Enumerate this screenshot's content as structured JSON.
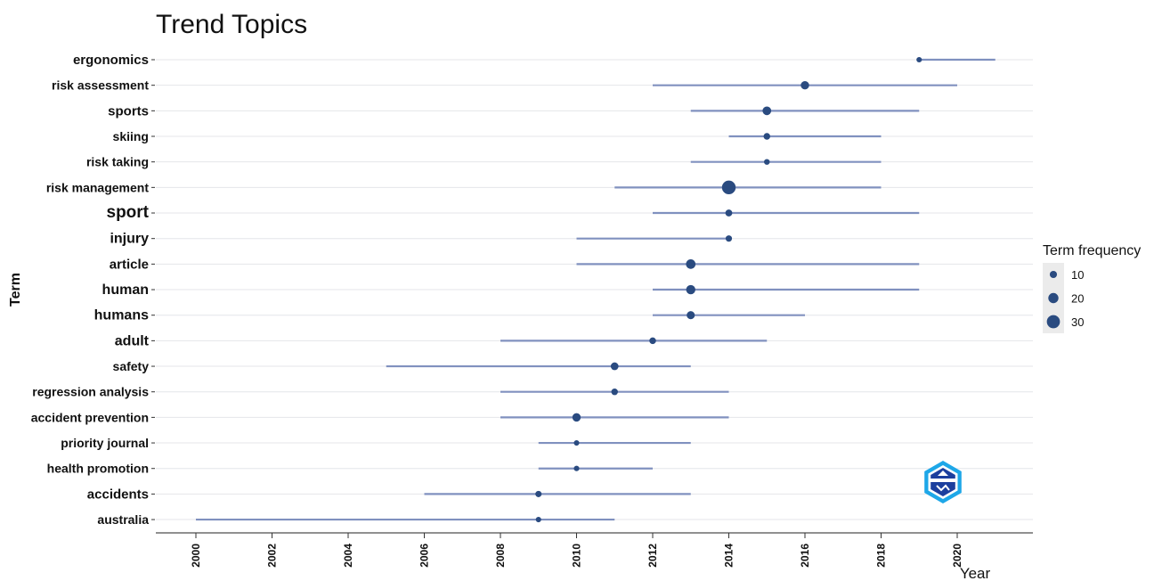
{
  "chart_data": {
    "type": "scatter",
    "title": "Trend Topics",
    "xlabel": "Year",
    "ylabel": "Term",
    "xlim": [
      1999,
      2022
    ],
    "x_ticks": [
      2000,
      2002,
      2004,
      2006,
      2008,
      2010,
      2012,
      2014,
      2016,
      2018,
      2020
    ],
    "grid": true,
    "legend": {
      "title": "Term frequency",
      "position": "right",
      "entries": [
        {
          "label": "10",
          "size": 10
        },
        {
          "label": "20",
          "size": 20
        },
        {
          "label": "30",
          "size": 30
        }
      ]
    },
    "colors": {
      "point": "#2a4b80",
      "line": "#8091bf",
      "grid": "#e4e6ea"
    },
    "terms": [
      {
        "term": "ergonomics",
        "year_q1": 2019,
        "year_median": 2019,
        "year_q3": 2021,
        "freq": 4
      },
      {
        "term": "risk assessment",
        "year_q1": 2012,
        "year_median": 2016,
        "year_q3": 2020,
        "freq": 14
      },
      {
        "term": "sports",
        "year_q1": 2013,
        "year_median": 2015,
        "year_q3": 2019,
        "freq": 15
      },
      {
        "term": "skiing",
        "year_q1": 2014,
        "year_median": 2015,
        "year_q3": 2018,
        "freq": 8
      },
      {
        "term": "risk taking",
        "year_q1": 2013,
        "year_median": 2015,
        "year_q3": 2018,
        "freq": 5
      },
      {
        "term": "risk management",
        "year_q1": 2011,
        "year_median": 2014,
        "year_q3": 2018,
        "freq": 32
      },
      {
        "term": "sport",
        "year_q1": 2012,
        "year_median": 2014,
        "year_q3": 2019,
        "freq": 9
      },
      {
        "term": "injury",
        "year_q1": 2010,
        "year_median": 2014,
        "year_q3": 2014,
        "freq": 7
      },
      {
        "term": "article",
        "year_q1": 2010,
        "year_median": 2013,
        "year_q3": 2019,
        "freq": 18
      },
      {
        "term": "human",
        "year_q1": 2012,
        "year_median": 2013,
        "year_q3": 2019,
        "freq": 17
      },
      {
        "term": "humans",
        "year_q1": 2012,
        "year_median": 2013,
        "year_q3": 2016,
        "freq": 13
      },
      {
        "term": "adult",
        "year_q1": 2008,
        "year_median": 2012,
        "year_q3": 2015,
        "freq": 8
      },
      {
        "term": "safety",
        "year_q1": 2005,
        "year_median": 2011,
        "year_q3": 2013,
        "freq": 12
      },
      {
        "term": "regression analysis",
        "year_q1": 2008,
        "year_median": 2011,
        "year_q3": 2014,
        "freq": 8
      },
      {
        "term": "accident prevention",
        "year_q1": 2008,
        "year_median": 2010,
        "year_q3": 2014,
        "freq": 14
      },
      {
        "term": "priority journal",
        "year_q1": 2009,
        "year_median": 2010,
        "year_q3": 2013,
        "freq": 4
      },
      {
        "term": "health promotion",
        "year_q1": 2009,
        "year_median": 2010,
        "year_q3": 2012,
        "freq": 4
      },
      {
        "term": "accidents",
        "year_q1": 2006,
        "year_median": 2009,
        "year_q3": 2013,
        "freq": 7
      },
      {
        "term": "australia",
        "year_q1": 2000,
        "year_median": 2009,
        "year_q3": 2011,
        "freq": 4
      }
    ]
  }
}
